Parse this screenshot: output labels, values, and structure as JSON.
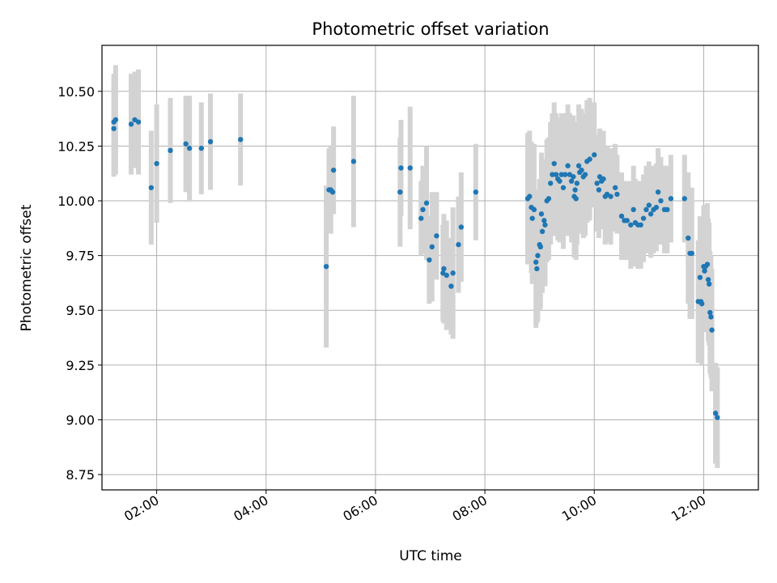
{
  "chart_data": {
    "type": "scatter",
    "title": "Photometric offset variation",
    "xlabel": "UTC time",
    "ylabel": "Photometric offset",
    "xlim": [
      "01:00",
      "13:00"
    ],
    "ylim": [
      8.68,
      10.71
    ],
    "grid": true,
    "x_ticks": [
      "02:00",
      "04:00",
      "06:00",
      "08:00",
      "10:00",
      "12:00"
    ],
    "y_ticks": [
      "8.75",
      "9.00",
      "9.25",
      "9.50",
      "9.75",
      "10.00",
      "10.25",
      "10.50"
    ],
    "colors": {
      "point": "#1f77b4",
      "errorbar": "#d3d3d3",
      "grid": "#b0b0b0"
    },
    "series": [
      {
        "points": [
          {
            "t": "01:13",
            "y": 10.33,
            "err": 0.22
          },
          {
            "t": "01:13",
            "y": 10.36,
            "err": 0.22
          },
          {
            "t": "01:15",
            "y": 10.37,
            "err": 0.25
          },
          {
            "t": "01:32",
            "y": 10.35,
            "err": 0.23
          },
          {
            "t": "01:36",
            "y": 10.37,
            "err": 0.22
          },
          {
            "t": "01:40",
            "y": 10.36,
            "err": 0.24
          },
          {
            "t": "01:54",
            "y": 10.06,
            "err": 0.26
          },
          {
            "t": "02:00",
            "y": 10.17,
            "err": 0.27
          },
          {
            "t": "02:15",
            "y": 10.23,
            "err": 0.24
          },
          {
            "t": "02:32",
            "y": 10.26,
            "err": 0.22
          },
          {
            "t": "02:36",
            "y": 10.24,
            "err": 0.24
          },
          {
            "t": "02:49",
            "y": 10.24,
            "err": 0.21
          },
          {
            "t": "02:59",
            "y": 10.27,
            "err": 0.22
          },
          {
            "t": "03:32",
            "y": 10.28,
            "err": 0.21
          },
          {
            "t": "05:06",
            "y": 9.7,
            "err": 0.37
          },
          {
            "t": "05:09",
            "y": 10.05,
            "err": 0.19
          },
          {
            "t": "05:11",
            "y": 10.05,
            "err": 0.2
          },
          {
            "t": "05:13",
            "y": 10.04,
            "err": 0.1
          },
          {
            "t": "05:14",
            "y": 10.14,
            "err": 0.2
          },
          {
            "t": "05:36",
            "y": 10.18,
            "err": 0.3
          },
          {
            "t": "06:27",
            "y": 10.04,
            "err": 0.25
          },
          {
            "t": "06:28",
            "y": 10.15,
            "err": 0.22
          },
          {
            "t": "06:38",
            "y": 10.15,
            "err": 0.28
          },
          {
            "t": "06:50",
            "y": 9.92,
            "err": 0.17
          },
          {
            "t": "06:52",
            "y": 9.96,
            "err": 0.2
          },
          {
            "t": "06:56",
            "y": 9.99,
            "err": 0.26
          },
          {
            "t": "06:59",
            "y": 9.73,
            "err": 0.2
          },
          {
            "t": "07:02",
            "y": 9.79,
            "err": 0.25
          },
          {
            "t": "07:07",
            "y": 9.84,
            "err": 0.2
          },
          {
            "t": "07:14",
            "y": 9.67,
            "err": 0.22
          },
          {
            "t": "07:15",
            "y": 9.69,
            "err": 0.25
          },
          {
            "t": "07:18",
            "y": 9.66,
            "err": 0.25
          },
          {
            "t": "07:23",
            "y": 9.61,
            "err": 0.22
          },
          {
            "t": "07:25",
            "y": 9.67,
            "err": 0.3
          },
          {
            "t": "07:31",
            "y": 9.8,
            "err": 0.22
          },
          {
            "t": "07:34",
            "y": 9.88,
            "err": 0.25
          },
          {
            "t": "07:50",
            "y": 10.04,
            "err": 0.22
          },
          {
            "t": "08:47",
            "y": 10.01,
            "err": 0.3
          },
          {
            "t": "08:49",
            "y": 10.02,
            "err": 0.3
          },
          {
            "t": "08:51",
            "y": 9.97,
            "err": 0.3
          },
          {
            "t": "08:52",
            "y": 9.92,
            "err": 0.3
          },
          {
            "t": "08:54",
            "y": 9.96,
            "err": 0.3
          },
          {
            "t": "08:56",
            "y": 9.72,
            "err": 0.3
          },
          {
            "t": "08:57",
            "y": 9.69,
            "err": 0.25
          },
          {
            "t": "08:58",
            "y": 9.75,
            "err": 0.3
          },
          {
            "t": "09:00",
            "y": 9.8,
            "err": 0.3
          },
          {
            "t": "09:01",
            "y": 9.79,
            "err": 0.28
          },
          {
            "t": "09:02",
            "y": 9.94,
            "err": 0.28
          },
          {
            "t": "09:03",
            "y": 9.86,
            "err": 0.28
          },
          {
            "t": "09:05",
            "y": 9.91,
            "err": 0.28
          },
          {
            "t": "09:06",
            "y": 9.89,
            "err": 0.28
          },
          {
            "t": "09:08",
            "y": 10.0,
            "err": 0.28
          },
          {
            "t": "09:10",
            "y": 10.01,
            "err": 0.28
          },
          {
            "t": "09:12",
            "y": 10.08,
            "err": 0.28
          },
          {
            "t": "09:14",
            "y": 10.12,
            "err": 0.28
          },
          {
            "t": "09:16",
            "y": 10.17,
            "err": 0.28
          },
          {
            "t": "09:18",
            "y": 10.12,
            "err": 0.28
          },
          {
            "t": "09:20",
            "y": 10.1,
            "err": 0.28
          },
          {
            "t": "09:22",
            "y": 10.09,
            "err": 0.28
          },
          {
            "t": "09:24",
            "y": 10.12,
            "err": 0.28
          },
          {
            "t": "09:26",
            "y": 10.06,
            "err": 0.28
          },
          {
            "t": "09:28",
            "y": 10.12,
            "err": 0.28
          },
          {
            "t": "09:31",
            "y": 10.16,
            "err": 0.28
          },
          {
            "t": "09:33",
            "y": 10.12,
            "err": 0.28
          },
          {
            "t": "09:35",
            "y": 10.09,
            "err": 0.28
          },
          {
            "t": "09:37",
            "y": 10.11,
            "err": 0.28
          },
          {
            "t": "09:38",
            "y": 10.02,
            "err": 0.28
          },
          {
            "t": "09:39",
            "y": 10.05,
            "err": 0.28
          },
          {
            "t": "09:40",
            "y": 10.01,
            "err": 0.28
          },
          {
            "t": "09:41",
            "y": 10.08,
            "err": 0.28
          },
          {
            "t": "09:43",
            "y": 10.16,
            "err": 0.28
          },
          {
            "t": "09:44",
            "y": 10.13,
            "err": 0.28
          },
          {
            "t": "09:46",
            "y": 10.14,
            "err": 0.28
          },
          {
            "t": "09:48",
            "y": 10.11,
            "err": 0.28
          },
          {
            "t": "09:50",
            "y": 10.12,
            "err": 0.28
          },
          {
            "t": "09:52",
            "y": 10.18,
            "err": 0.28
          },
          {
            "t": "09:55",
            "y": 10.19,
            "err": 0.28
          },
          {
            "t": "10:00",
            "y": 10.21,
            "err": 0.24
          },
          {
            "t": "10:03",
            "y": 10.08,
            "err": 0.22
          },
          {
            "t": "10:05",
            "y": 10.05,
            "err": 0.22
          },
          {
            "t": "10:06",
            "y": 10.11,
            "err": 0.22
          },
          {
            "t": "10:08",
            "y": 10.09,
            "err": 0.22
          },
          {
            "t": "10:10",
            "y": 10.1,
            "err": 0.22
          },
          {
            "t": "10:12",
            "y": 10.02,
            "err": 0.22
          },
          {
            "t": "10:14",
            "y": 10.03,
            "err": 0.22
          },
          {
            "t": "10:18",
            "y": 10.02,
            "err": 0.22
          },
          {
            "t": "10:23",
            "y": 10.06,
            "err": 0.2
          },
          {
            "t": "10:25",
            "y": 10.03,
            "err": 0.18
          },
          {
            "t": "10:30",
            "y": 9.93,
            "err": 0.2
          },
          {
            "t": "10:33",
            "y": 9.91,
            "err": 0.18
          },
          {
            "t": "10:36",
            "y": 9.91,
            "err": 0.18
          },
          {
            "t": "10:40",
            "y": 9.89,
            "err": 0.2
          },
          {
            "t": "10:43",
            "y": 9.96,
            "err": 0.2
          },
          {
            "t": "10:45",
            "y": 9.9,
            "err": 0.2
          },
          {
            "t": "10:48",
            "y": 9.89,
            "err": 0.2
          },
          {
            "t": "10:51",
            "y": 9.89,
            "err": 0.2
          },
          {
            "t": "10:54",
            "y": 9.92,
            "err": 0.2
          },
          {
            "t": "10:57",
            "y": 9.96,
            "err": 0.2
          },
          {
            "t": "11:00",
            "y": 9.98,
            "err": 0.2
          },
          {
            "t": "11:02",
            "y": 9.94,
            "err": 0.2
          },
          {
            "t": "11:05",
            "y": 9.96,
            "err": 0.2
          },
          {
            "t": "11:08",
            "y": 9.97,
            "err": 0.2
          },
          {
            "t": "11:10",
            "y": 10.04,
            "err": 0.2
          },
          {
            "t": "11:13",
            "y": 10.0,
            "err": 0.2
          },
          {
            "t": "11:17",
            "y": 9.96,
            "err": 0.2
          },
          {
            "t": "11:20",
            "y": 9.96,
            "err": 0.2
          },
          {
            "t": "11:24",
            "y": 10.01,
            "err": 0.2
          },
          {
            "t": "11:39",
            "y": 10.01,
            "err": 0.2
          },
          {
            "t": "11:43",
            "y": 9.83,
            "err": 0.3
          },
          {
            "t": "11:45",
            "y": 9.76,
            "err": 0.3
          },
          {
            "t": "11:47",
            "y": 9.76,
            "err": 0.3
          },
          {
            "t": "11:54",
            "y": 9.54,
            "err": 0.28
          },
          {
            "t": "11:56",
            "y": 9.65,
            "err": 0.28
          },
          {
            "t": "11:57",
            "y": 9.54,
            "err": 0.28
          },
          {
            "t": "11:58",
            "y": 9.53,
            "err": 0.28
          },
          {
            "t": "12:00",
            "y": 9.7,
            "err": 0.28
          },
          {
            "t": "12:01",
            "y": 9.68,
            "err": 0.28
          },
          {
            "t": "12:02",
            "y": 9.7,
            "err": 0.28
          },
          {
            "t": "12:04",
            "y": 9.71,
            "err": 0.28
          },
          {
            "t": "12:05",
            "y": 9.64,
            "err": 0.28
          },
          {
            "t": "12:06",
            "y": 9.62,
            "err": 0.28
          },
          {
            "t": "12:07",
            "y": 9.49,
            "err": 0.28
          },
          {
            "t": "12:08",
            "y": 9.47,
            "err": 0.28
          },
          {
            "t": "12:09",
            "y": 9.41,
            "err": 0.28
          },
          {
            "t": "12:13",
            "y": 9.03,
            "err": 0.23
          },
          {
            "t": "12:15",
            "y": 9.01,
            "err": 0.23
          }
        ]
      }
    ]
  }
}
